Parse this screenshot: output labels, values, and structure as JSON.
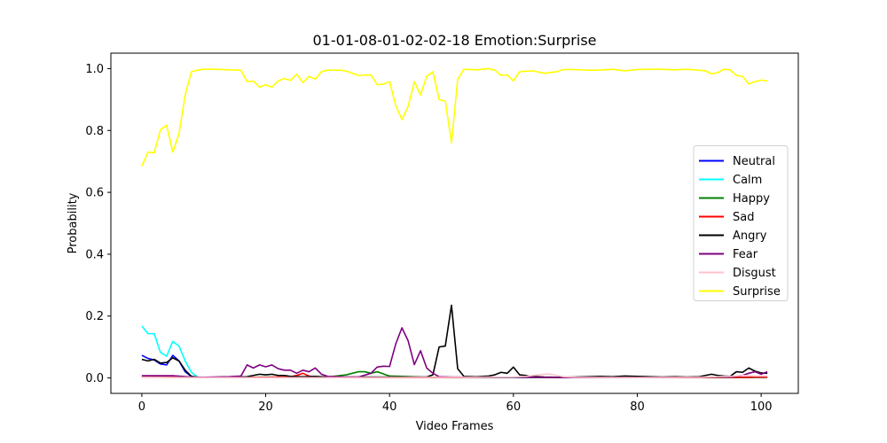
{
  "chart_data": {
    "type": "line",
    "title": "01-01-08-01-02-02-18 Emotion:Surprise",
    "xlabel": "Video Frames",
    "ylabel": "Probability",
    "xlim": [
      -5,
      106
    ],
    "ylim": [
      -0.05,
      1.05
    ],
    "xticks": [
      0,
      20,
      40,
      60,
      80,
      100
    ],
    "yticks": [
      0.0,
      0.2,
      0.4,
      0.6,
      0.8,
      1.0
    ],
    "grid": false,
    "legend_position": "center-right",
    "series": [
      {
        "name": "Neutral",
        "color": "#0000ff",
        "points": [
          [
            0,
            0.073
          ],
          [
            1,
            0.063
          ],
          [
            2,
            0.058
          ],
          [
            3,
            0.045
          ],
          [
            4,
            0.042
          ],
          [
            5,
            0.073
          ],
          [
            6,
            0.055
          ],
          [
            7,
            0.02
          ],
          [
            8,
            0.005
          ],
          [
            9,
            0.002
          ],
          [
            10,
            0.001
          ],
          [
            20,
            0.001
          ],
          [
            40,
            0.001
          ],
          [
            60,
            0.001
          ],
          [
            80,
            0.001
          ],
          [
            101,
            0.001
          ]
        ]
      },
      {
        "name": "Calm",
        "color": "#00ffff",
        "points": [
          [
            0,
            0.168
          ],
          [
            1,
            0.143
          ],
          [
            2,
            0.143
          ],
          [
            3,
            0.083
          ],
          [
            4,
            0.07
          ],
          [
            5,
            0.118
          ],
          [
            6,
            0.103
          ],
          [
            7,
            0.055
          ],
          [
            8,
            0.018
          ],
          [
            9,
            0.003
          ],
          [
            10,
            0.001
          ],
          [
            20,
            0.001
          ],
          [
            40,
            0.001
          ],
          [
            60,
            0.001
          ],
          [
            80,
            0.001
          ],
          [
            101,
            0.001
          ]
        ]
      },
      {
        "name": "Happy",
        "color": "#008000",
        "points": [
          [
            0,
            0.003
          ],
          [
            10,
            0.001
          ],
          [
            17,
            0.002
          ],
          [
            20,
            0.003
          ],
          [
            25,
            0.003
          ],
          [
            28,
            0.002
          ],
          [
            30,
            0.003
          ],
          [
            33,
            0.01
          ],
          [
            35,
            0.02
          ],
          [
            36,
            0.02
          ],
          [
            37,
            0.015
          ],
          [
            38,
            0.02
          ],
          [
            39,
            0.013
          ],
          [
            40,
            0.006
          ],
          [
            42,
            0.005
          ],
          [
            45,
            0.003
          ],
          [
            50,
            0.002
          ],
          [
            55,
            0.002
          ],
          [
            60,
            0.002
          ],
          [
            70,
            0.001
          ],
          [
            80,
            0.001
          ],
          [
            90,
            0.001
          ],
          [
            101,
            0.002
          ]
        ]
      },
      {
        "name": "Sad",
        "color": "#ff0000",
        "points": [
          [
            0,
            0.004
          ],
          [
            2,
            0.006
          ],
          [
            4,
            0.006
          ],
          [
            6,
            0.005
          ],
          [
            8,
            0.002
          ],
          [
            10,
            0.001
          ],
          [
            20,
            0.002
          ],
          [
            24,
            0.004
          ],
          [
            25,
            0.008
          ],
          [
            26,
            0.015
          ],
          [
            27,
            0.006
          ],
          [
            28,
            0.002
          ],
          [
            40,
            0.001
          ],
          [
            60,
            0.002
          ],
          [
            80,
            0.001
          ],
          [
            101,
            0.002
          ]
        ]
      },
      {
        "name": "Angry",
        "color": "#000000",
        "points": [
          [
            0,
            0.06
          ],
          [
            1,
            0.055
          ],
          [
            2,
            0.06
          ],
          [
            3,
            0.048
          ],
          [
            4,
            0.05
          ],
          [
            5,
            0.065
          ],
          [
            6,
            0.055
          ],
          [
            7,
            0.025
          ],
          [
            8,
            0.005
          ],
          [
            9,
            0.002
          ],
          [
            10,
            0.001
          ],
          [
            15,
            0.002
          ],
          [
            17,
            0.004
          ],
          [
            18,
            0.008
          ],
          [
            19,
            0.012
          ],
          [
            20,
            0.01
          ],
          [
            21,
            0.012
          ],
          [
            22,
            0.008
          ],
          [
            23,
            0.008
          ],
          [
            24,
            0.005
          ],
          [
            26,
            0.004
          ],
          [
            28,
            0.005
          ],
          [
            30,
            0.003
          ],
          [
            35,
            0.003
          ],
          [
            40,
            0.003
          ],
          [
            42,
            0.003
          ],
          [
            45,
            0.003
          ],
          [
            46,
            0.003
          ],
          [
            47,
            0.01
          ],
          [
            48,
            0.1
          ],
          [
            49,
            0.103
          ],
          [
            50,
            0.235
          ],
          [
            51,
            0.03
          ],
          [
            52,
            0.005
          ],
          [
            54,
            0.004
          ],
          [
            56,
            0.006
          ],
          [
            57,
            0.01
          ],
          [
            58,
            0.018
          ],
          [
            59,
            0.015
          ],
          [
            60,
            0.035
          ],
          [
            61,
            0.01
          ],
          [
            62,
            0.008
          ],
          [
            63,
            0.005
          ],
          [
            65,
            0.003
          ],
          [
            67,
            0.002
          ],
          [
            70,
            0.003
          ],
          [
            72,
            0.004
          ],
          [
            74,
            0.005
          ],
          [
            76,
            0.004
          ],
          [
            78,
            0.006
          ],
          [
            80,
            0.005
          ],
          [
            82,
            0.004
          ],
          [
            84,
            0.003
          ],
          [
            86,
            0.004
          ],
          [
            88,
            0.003
          ],
          [
            90,
            0.004
          ],
          [
            92,
            0.012
          ],
          [
            93,
            0.008
          ],
          [
            94,
            0.006
          ],
          [
            95,
            0.005
          ],
          [
            96,
            0.02
          ],
          [
            97,
            0.018
          ],
          [
            98,
            0.032
          ],
          [
            99,
            0.022
          ],
          [
            100,
            0.016
          ],
          [
            101,
            0.015
          ]
        ]
      },
      {
        "name": "Fear",
        "color": "#800080",
        "points": [
          [
            0,
            0.007
          ],
          [
            5,
            0.007
          ],
          [
            8,
            0.003
          ],
          [
            10,
            0.002
          ],
          [
            14,
            0.004
          ],
          [
            16,
            0.006
          ],
          [
            17,
            0.042
          ],
          [
            18,
            0.032
          ],
          [
            19,
            0.042
          ],
          [
            20,
            0.036
          ],
          [
            21,
            0.042
          ],
          [
            22,
            0.03
          ],
          [
            23,
            0.025
          ],
          [
            24,
            0.025
          ],
          [
            25,
            0.015
          ],
          [
            26,
            0.025
          ],
          [
            27,
            0.02
          ],
          [
            28,
            0.032
          ],
          [
            29,
            0.012
          ],
          [
            30,
            0.005
          ],
          [
            33,
            0.003
          ],
          [
            35,
            0.003
          ],
          [
            37,
            0.015
          ],
          [
            38,
            0.035
          ],
          [
            39,
            0.038
          ],
          [
            40,
            0.037
          ],
          [
            41,
            0.11
          ],
          [
            42,
            0.162
          ],
          [
            43,
            0.12
          ],
          [
            44,
            0.043
          ],
          [
            45,
            0.088
          ],
          [
            46,
            0.032
          ],
          [
            47,
            0.015
          ],
          [
            48,
            0.004
          ],
          [
            50,
            0.003
          ],
          [
            55,
            0.002
          ],
          [
            60,
            0.002
          ],
          [
            65,
            0.002
          ],
          [
            70,
            0.001
          ],
          [
            80,
            0.001
          ],
          [
            90,
            0.002
          ],
          [
            95,
            0.003
          ],
          [
            97,
            0.008
          ],
          [
            98,
            0.015
          ],
          [
            99,
            0.02
          ],
          [
            100,
            0.012
          ],
          [
            101,
            0.02
          ]
        ]
      },
      {
        "name": "Disgust",
        "color": "#ffc0cb",
        "points": [
          [
            0,
            0.002
          ],
          [
            10,
            0.001
          ],
          [
            30,
            0.001
          ],
          [
            50,
            0.002
          ],
          [
            60,
            0.003
          ],
          [
            62,
            0.005
          ],
          [
            64,
            0.01
          ],
          [
            65,
            0.012
          ],
          [
            66,
            0.012
          ],
          [
            67,
            0.008
          ],
          [
            68,
            0.004
          ],
          [
            70,
            0.002
          ],
          [
            80,
            0.001
          ],
          [
            90,
            0.002
          ],
          [
            95,
            0.005
          ],
          [
            97,
            0.008
          ],
          [
            98,
            0.007
          ],
          [
            99,
            0.006
          ],
          [
            100,
            0.006
          ],
          [
            101,
            0.006
          ]
        ]
      },
      {
        "name": "Surprise",
        "color": "#ffff00",
        "points": [
          [
            0,
            0.685
          ],
          [
            1,
            0.73
          ],
          [
            2,
            0.728
          ],
          [
            3,
            0.802
          ],
          [
            4,
            0.817
          ],
          [
            5,
            0.73
          ],
          [
            6,
            0.79
          ],
          [
            7,
            0.915
          ],
          [
            8,
            0.99
          ],
          [
            9,
            0.995
          ],
          [
            10,
            0.998
          ],
          [
            12,
            0.998
          ],
          [
            14,
            0.996
          ],
          [
            16,
            0.995
          ],
          [
            17,
            0.958
          ],
          [
            18,
            0.96
          ],
          [
            19,
            0.94
          ],
          [
            20,
            0.948
          ],
          [
            21,
            0.94
          ],
          [
            22,
            0.96
          ],
          [
            23,
            0.968
          ],
          [
            24,
            0.962
          ],
          [
            25,
            0.982
          ],
          [
            26,
            0.955
          ],
          [
            27,
            0.975
          ],
          [
            28,
            0.966
          ],
          [
            29,
            0.99
          ],
          [
            30,
            0.995
          ],
          [
            32,
            0.995
          ],
          [
            33,
            0.992
          ],
          [
            35,
            0.978
          ],
          [
            37,
            0.98
          ],
          [
            38,
            0.948
          ],
          [
            39,
            0.95
          ],
          [
            40,
            0.958
          ],
          [
            41,
            0.88
          ],
          [
            42,
            0.835
          ],
          [
            43,
            0.878
          ],
          [
            44,
            0.958
          ],
          [
            45,
            0.915
          ],
          [
            46,
            0.975
          ],
          [
            47,
            0.99
          ],
          [
            48,
            0.9
          ],
          [
            49,
            0.895
          ],
          [
            50,
            0.76
          ],
          [
            51,
            0.965
          ],
          [
            52,
            0.998
          ],
          [
            54,
            0.996
          ],
          [
            56,
            1.0
          ],
          [
            57,
            0.995
          ],
          [
            58,
            0.978
          ],
          [
            59,
            0.98
          ],
          [
            60,
            0.96
          ],
          [
            61,
            0.99
          ],
          [
            63,
            0.993
          ],
          [
            65,
            0.985
          ],
          [
            67,
            0.99
          ],
          [
            68,
            0.997
          ],
          [
            70,
            0.997
          ],
          [
            72,
            0.995
          ],
          [
            74,
            0.995
          ],
          [
            76,
            0.998
          ],
          [
            78,
            0.993
          ],
          [
            80,
            0.997
          ],
          [
            82,
            0.998
          ],
          [
            84,
            0.998
          ],
          [
            86,
            0.996
          ],
          [
            88,
            0.998
          ],
          [
            90,
            0.995
          ],
          [
            91,
            0.993
          ],
          [
            92,
            0.983
          ],
          [
            93,
            0.987
          ],
          [
            94,
            0.998
          ],
          [
            95,
            0.996
          ],
          [
            96,
            0.978
          ],
          [
            97,
            0.975
          ],
          [
            98,
            0.95
          ],
          [
            99,
            0.958
          ],
          [
            100,
            0.963
          ],
          [
            101,
            0.96
          ]
        ]
      }
    ]
  }
}
